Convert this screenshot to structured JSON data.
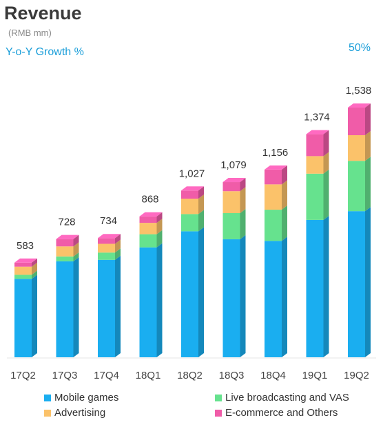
{
  "header": {
    "title": "Revenue",
    "subtitle": "(RMB mm)",
    "yoy_label": "Y-o-Y Growth %",
    "yoy_value": "50%"
  },
  "colors": {
    "mobile_games": "#1aaef0",
    "live_broadcasting": "#66e28e",
    "advertising": "#fbc26a",
    "ecommerce": "#f05ca8"
  },
  "chart_data": {
    "type": "bar",
    "stacked": true,
    "categories": [
      "17Q2",
      "17Q3",
      "17Q4",
      "18Q1",
      "18Q2",
      "18Q3",
      "18Q4",
      "19Q1",
      "19Q2"
    ],
    "totals": [
      "583",
      "728",
      "734",
      "868",
      "1,027",
      "1,079",
      "1,156",
      "1,374",
      "1,538"
    ],
    "series": [
      {
        "name": "Mobile games",
        "color": "#1aaef0",
        "values": [
          483,
          591,
          600,
          677,
          776,
          727,
          717,
          846,
          900
        ]
      },
      {
        "name": "Live broadcasting and VAS",
        "color": "#66e28e",
        "values": [
          25,
          30,
          45,
          81,
          106,
          161,
          192,
          285,
          310
        ]
      },
      {
        "name": "Advertising",
        "color": "#fbc26a",
        "values": [
          50,
          62,
          54,
          70,
          95,
          135,
          156,
          108,
          158
        ]
      },
      {
        "name": "E-commerce and Others",
        "color": "#f05ca8",
        "values": [
          25,
          45,
          35,
          40,
          50,
          56,
          91,
          135,
          170
        ]
      }
    ],
    "ylim": [
      0,
      1538
    ],
    "legend_position": "bottom"
  }
}
